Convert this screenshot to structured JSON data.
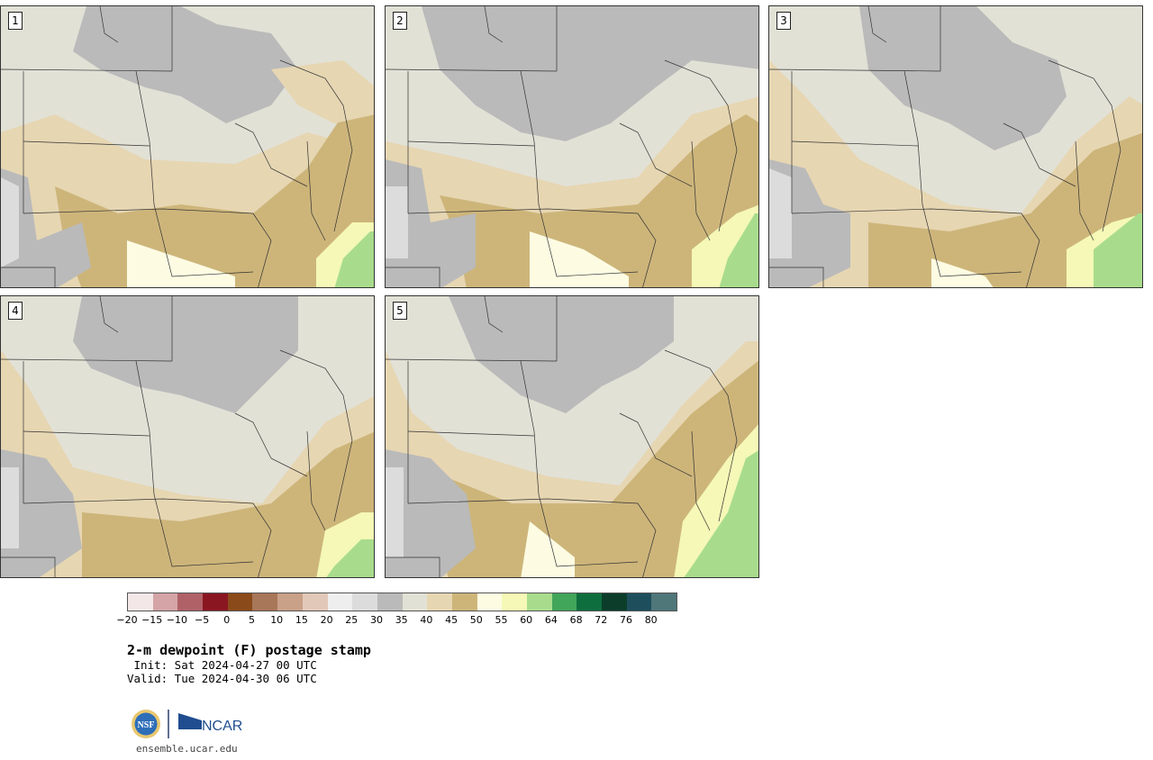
{
  "panels": [
    {
      "label": "1"
    },
    {
      "label": "2"
    },
    {
      "label": "3"
    },
    {
      "label": "4"
    },
    {
      "label": "5"
    }
  ],
  "colorbar": {
    "ticks": [
      "−20",
      "−15",
      "−10",
      "−5",
      "0",
      "5",
      "10",
      "15",
      "20",
      "25",
      "30",
      "35",
      "40",
      "45",
      "50",
      "55",
      "60",
      "64",
      "68",
      "72",
      "76",
      "80"
    ],
    "colors": [
      "#f3e7e7",
      "#d4a4a6",
      "#b06168",
      "#8a1621",
      "#8a4a1a",
      "#a87658",
      "#c9a088",
      "#e2c8b8",
      "#eeeeee",
      "#dcdcdc",
      "#bababa",
      "#e2e1d6",
      "#e6d6b2",
      "#cdb57a",
      "#fdfce3",
      "#f5f8b6",
      "#a8dc8c",
      "#41a55a",
      "#0f6e3e",
      "#0b3d2a",
      "#1e4e5c",
      "#4f7679"
    ]
  },
  "title": "2-m dewpoint (F) postage stamp",
  "init": " Init: Sat 2024-04-27 00 UTC",
  "valid": "Valid: Tue 2024-04-30 06 UTC",
  "logos": {
    "left": "NSF",
    "right": "NCAR"
  },
  "website": "ensemble.ucar.edu",
  "map_colors": {
    "gray": "#bababa",
    "light": "#e2e1d6",
    "tan": "#e6d6b2",
    "brown": "#cdb57a",
    "cream": "#fdfce3",
    "yellow": "#f5f8b6",
    "green": "#a8dc8c",
    "lightgray": "#dcdcdc"
  }
}
